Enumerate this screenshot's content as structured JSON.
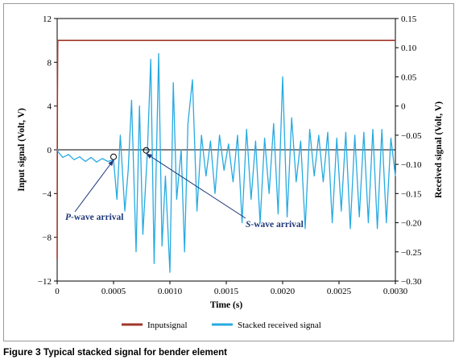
{
  "chart_data": {
    "type": "line",
    "xlabel": "Time (s)",
    "ylabel_left": "Input signal (Volt, V)",
    "ylabel_right": "Received signal (Volt, V)",
    "xlim": [
      0,
      0.003
    ],
    "ylim_left": [
      -12,
      12
    ],
    "ylim_right": [
      -0.3,
      0.15
    ],
    "x_ticks": [
      0,
      0.0005,
      0.001,
      0.0015,
      0.002,
      0.0025,
      0.003
    ],
    "x_tick_labels": [
      "0",
      "0.0005",
      "0.0010",
      "0.0015",
      "0.0020",
      "0.0025",
      "0.0030"
    ],
    "y_left_ticks": [
      12,
      8,
      4,
      0,
      -4,
      -8,
      -12
    ],
    "y_left_tick_labels": [
      "12",
      "8",
      "4",
      "0",
      "−4",
      "−8",
      "−12"
    ],
    "y_right_ticks": [
      0.15,
      0.1,
      0.05,
      0,
      -0.05,
      -0.1,
      -0.15,
      -0.2,
      -0.25,
      -0.3
    ],
    "y_right_tick_labels": [
      "0.15",
      "0.10",
      "0.05",
      "0",
      "−0.05",
      "−0.10",
      "−0.15",
      "−0.20",
      "−0.25",
      "−0.30"
    ],
    "grid": false,
    "legend_position": "bottom",
    "series": [
      {
        "name": "Inputsignal",
        "axis": "left",
        "color": "#a0362a",
        "x": [
          0,
          2e-06,
          5e-06,
          0.003
        ],
        "y": [
          -10,
          5,
          10,
          10
        ]
      },
      {
        "name": "Stacked received signal",
        "axis": "right",
        "color": "#27aae1",
        "x": [
          0,
          1e-05,
          5e-05,
          0.0001,
          0.00015,
          0.0002,
          0.00025,
          0.0003,
          0.00035,
          0.0004,
          0.00045,
          0.0005,
          0.00053,
          0.00056,
          0.0006,
          0.00063,
          0.00066,
          0.0007,
          0.00073,
          0.00076,
          0.0008,
          0.00083,
          0.00086,
          0.0009,
          0.00093,
          0.00096,
          0.001,
          0.00103,
          0.00106,
          0.0011,
          0.00113,
          0.00116,
          0.0012,
          0.00124,
          0.00128,
          0.00132,
          0.00136,
          0.0014,
          0.00144,
          0.00148,
          0.00152,
          0.00156,
          0.0016,
          0.00164,
          0.00168,
          0.00172,
          0.00176,
          0.0018,
          0.00184,
          0.00188,
          0.00192,
          0.00196,
          0.002,
          0.00204,
          0.00208,
          0.00212,
          0.00216,
          0.0022,
          0.00224,
          0.00228,
          0.00232,
          0.00236,
          0.0024,
          0.00244,
          0.00248,
          0.00252,
          0.00256,
          0.0026,
          0.00264,
          0.00268,
          0.00272,
          0.00276,
          0.0028,
          0.00284,
          0.00288,
          0.00292,
          0.00296,
          0.003
        ],
        "y": [
          -0.074,
          -0.079,
          -0.088,
          -0.083,
          -0.092,
          -0.087,
          -0.095,
          -0.088,
          -0.096,
          -0.09,
          -0.095,
          -0.092,
          -0.16,
          -0.05,
          -0.18,
          -0.11,
          0.01,
          -0.25,
          0.0,
          -0.22,
          -0.08,
          0.08,
          -0.27,
          0.09,
          -0.24,
          -0.12,
          -0.285,
          0.04,
          -0.16,
          -0.075,
          -0.25,
          -0.03,
          0.045,
          -0.18,
          -0.05,
          -0.12,
          -0.06,
          -0.15,
          -0.05,
          -0.11,
          -0.065,
          -0.13,
          -0.05,
          -0.2,
          -0.04,
          -0.16,
          -0.06,
          -0.2,
          -0.055,
          -0.15,
          -0.03,
          -0.185,
          0.05,
          -0.19,
          -0.02,
          -0.13,
          -0.06,
          -0.21,
          -0.04,
          -0.12,
          -0.05,
          -0.13,
          -0.045,
          -0.2,
          -0.055,
          -0.18,
          -0.045,
          -0.21,
          -0.05,
          -0.19,
          -0.045,
          -0.2,
          -0.04,
          -0.21,
          -0.04,
          -0.2,
          -0.055,
          -0.12
        ]
      }
    ],
    "annotations": [
      {
        "text": "P-wave arrival",
        "italic_part": "P",
        "rest": "-wave arrival",
        "x": 0.0005,
        "y_right": -0.087
      },
      {
        "text": "S-wave arrival",
        "italic_part": "S",
        "rest": "-wave arrival",
        "x": 0.00079,
        "y_right": -0.076
      }
    ]
  },
  "caption": {
    "label": "Figure 3",
    "text": "Typical stacked signal for bender element"
  }
}
